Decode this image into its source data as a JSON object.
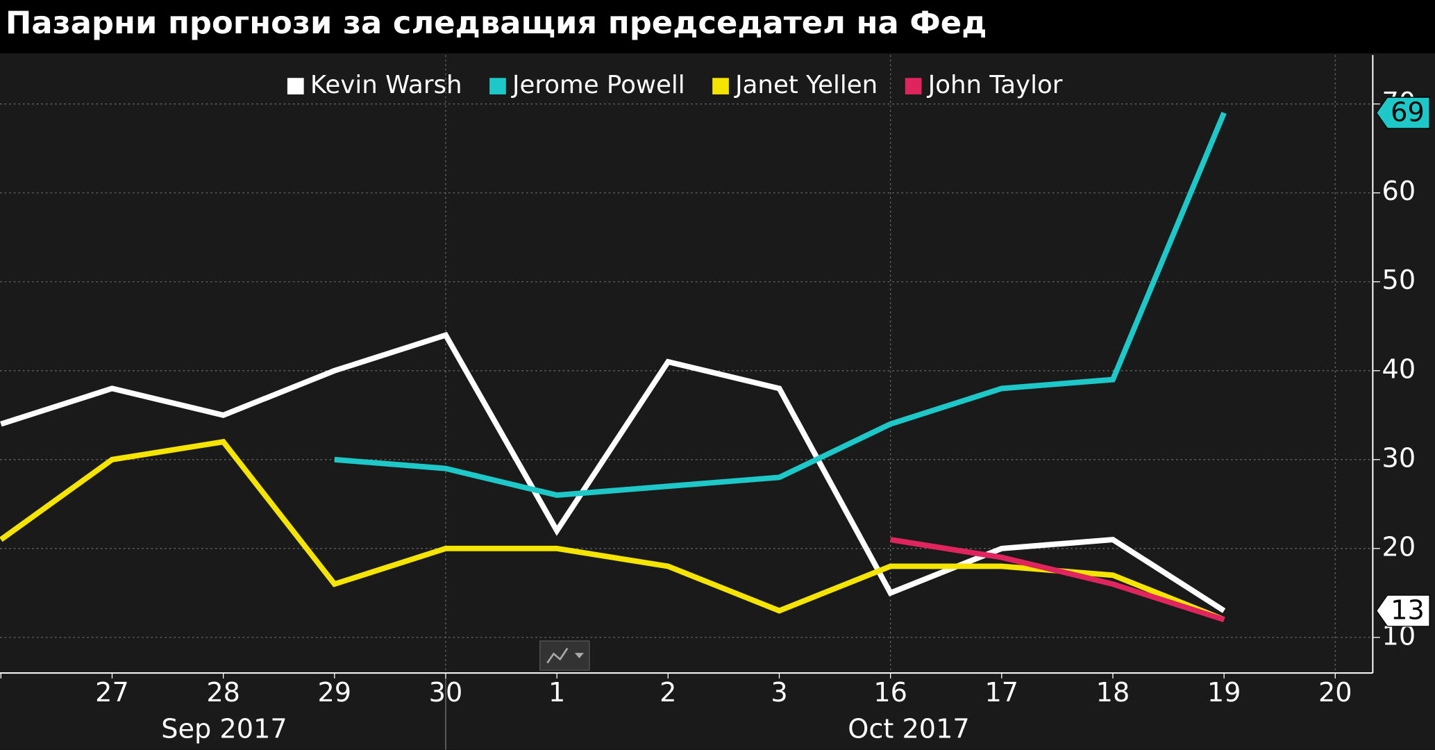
{
  "chart_data": {
    "type": "line",
    "title": "Пазарни прогнози за следващия председател на Фед",
    "categories": [
      null,
      "27",
      "28",
      "29",
      "30",
      "1",
      "2",
      "3",
      "16",
      "17",
      "18",
      "19",
      "20"
    ],
    "months": [
      "Sep 2017",
      "Oct 2017"
    ],
    "series": [
      {
        "name": "Kevin Warsh",
        "color": "#ffffff",
        "values": [
          34,
          38,
          35,
          40,
          44,
          22,
          41,
          38,
          15,
          20,
          21,
          13,
          null
        ]
      },
      {
        "name": "Jerome Powell",
        "color": "#1ec8c8",
        "values": [
          null,
          null,
          null,
          30,
          29,
          26,
          27,
          28,
          34,
          38,
          39,
          69,
          null
        ]
      },
      {
        "name": "Janet Yellen",
        "color": "#f5e400",
        "values": [
          21,
          30,
          32,
          16,
          20,
          20,
          18,
          13,
          18,
          18,
          17,
          12,
          null
        ]
      },
      {
        "name": "John Taylor",
        "color": "#e0245e",
        "values": [
          null,
          null,
          null,
          null,
          null,
          null,
          null,
          null,
          21,
          19,
          16,
          12,
          null
        ]
      }
    ],
    "ylim": [
      6,
      75.5
    ],
    "yticks": [
      10,
      20,
      30,
      40,
      50,
      60,
      70
    ],
    "grid": true
  }
}
